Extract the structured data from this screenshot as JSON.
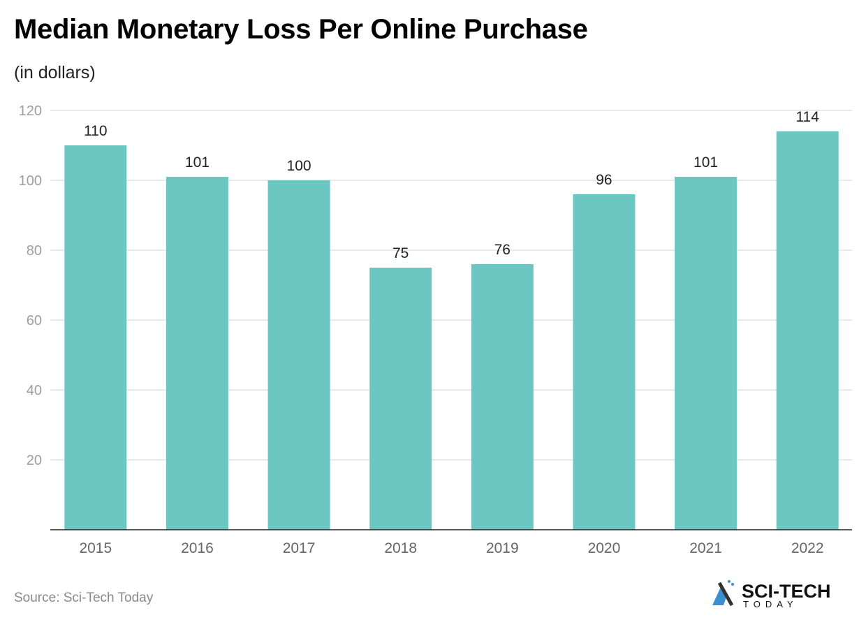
{
  "title": "Median Monetary Loss Per Online Purchase",
  "subtitle": "(in dollars)",
  "source": "Source: Sci-Tech Today",
  "logo": {
    "text": "SCI-TECH",
    "subtext": "TODAY"
  },
  "colors": {
    "bar": "#6cc6c2",
    "grid": "#e3e3e3",
    "axis": "#222222",
    "tick_label": "#9e9e9e",
    "category_label": "#666666"
  },
  "chart_data": {
    "type": "bar",
    "categories": [
      "2015",
      "2016",
      "2017",
      "2018",
      "2019",
      "2020",
      "2021",
      "2022"
    ],
    "values": [
      110,
      101,
      100,
      75,
      76,
      96,
      101,
      114
    ],
    "ylim": [
      0,
      120
    ],
    "yticks": [
      20,
      40,
      60,
      80,
      100,
      120
    ],
    "grid": true,
    "data_labels": true,
    "xlabel": "",
    "ylabel": ""
  }
}
